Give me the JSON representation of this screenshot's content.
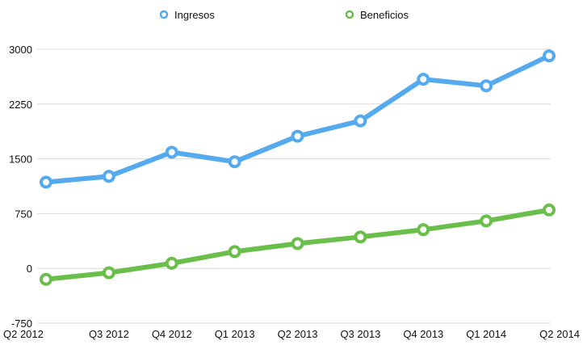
{
  "chart_data": {
    "type": "line",
    "categories": [
      "Q2 2012",
      "Q3 2012",
      "Q4 2012",
      "Q1 2013",
      "Q2 2013",
      "Q3 2013",
      "Q4 2013",
      "Q1 2014",
      "Q2 2014"
    ],
    "series": [
      {
        "name": "Ingresos",
        "color": "#55aaee",
        "values": [
          1180,
          1260,
          1590,
          1460,
          1810,
          2020,
          2590,
          2500,
          2910
        ]
      },
      {
        "name": "Beneficios",
        "color": "#6abf4b",
        "values": [
          -150,
          -60,
          70,
          230,
          340,
          430,
          530,
          650,
          800
        ]
      }
    ],
    "yticks": [
      3000,
      2250,
      1500,
      750,
      0,
      -750
    ],
    "ylim": [
      -750,
      3000
    ],
    "grid": true,
    "legend_position": "top-center"
  }
}
